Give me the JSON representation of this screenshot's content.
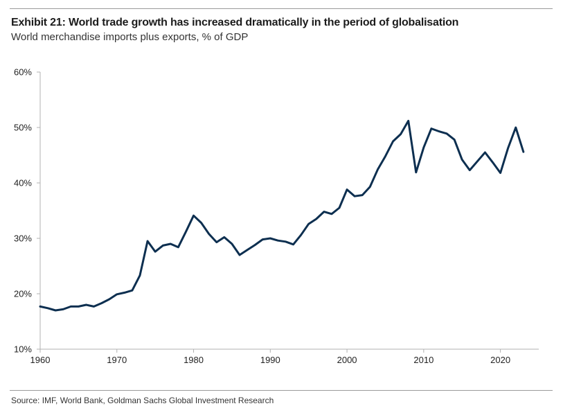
{
  "header": {
    "title": "Exhibit 21: World trade growth has increased dramatically in the period of globalisation",
    "subtitle": "World merchandise imports plus exports, % of GDP"
  },
  "footer": {
    "source": "Source: IMF, World Bank, Goldman Sachs Global Investment Research"
  },
  "colors": {
    "line": "#0d2f50",
    "axis": "#b0b0b0"
  },
  "chart_data": {
    "type": "line",
    "title": "Exhibit 21: World trade growth has increased dramatically in the period of globalisation",
    "subtitle": "World merchandise imports plus exports, % of GDP",
    "xlabel": "",
    "ylabel": "",
    "xlim": [
      1960,
      2025
    ],
    "ylim": [
      10,
      60
    ],
    "x_ticks": [
      1960,
      1970,
      1980,
      1990,
      2000,
      2010,
      2020
    ],
    "y_ticks": [
      10,
      20,
      30,
      40,
      50,
      60
    ],
    "y_tick_labels": [
      "10%",
      "20%",
      "30%",
      "40%",
      "50%",
      "60%"
    ],
    "grid": false,
    "legend": "none",
    "series": [
      {
        "x": [
          1960,
          1961,
          1962,
          1963,
          1964,
          1965,
          1966,
          1967,
          1968,
          1969,
          1970,
          1971,
          1972,
          1973,
          1974,
          1975,
          1976,
          1977,
          1978,
          1979,
          1980,
          1981,
          1982,
          1983,
          1984,
          1985,
          1986,
          1987,
          1988,
          1989,
          1990,
          1991,
          1992,
          1993,
          1994,
          1995,
          1996,
          1997,
          1998,
          1999,
          2000,
          2001,
          2002,
          2003,
          2004,
          2005,
          2006,
          2007,
          2008,
          2009,
          2010,
          2011,
          2012,
          2013,
          2014,
          2015,
          2016,
          2017,
          2018,
          2019,
          2020,
          2021,
          2022,
          2023
        ],
        "values": [
          17.7,
          17.4,
          17.0,
          17.2,
          17.7,
          17.7,
          18.0,
          17.7,
          18.3,
          19.0,
          19.9,
          20.2,
          20.6,
          23.3,
          29.5,
          27.6,
          28.7,
          29.0,
          28.4,
          31.2,
          34.1,
          32.8,
          30.8,
          29.3,
          30.2,
          29.0,
          27.0,
          27.9,
          28.8,
          29.8,
          30.0,
          29.6,
          29.4,
          28.9,
          30.6,
          32.6,
          33.5,
          34.8,
          34.4,
          35.5,
          38.8,
          37.6,
          37.8,
          39.3,
          42.4,
          44.8,
          47.5,
          48.8,
          51.2,
          41.9,
          46.4,
          49.8,
          49.3,
          48.9,
          47.8,
          44.2,
          42.3,
          43.9,
          45.5,
          43.7,
          41.8,
          46.3,
          50.0,
          45.6
        ]
      }
    ]
  }
}
